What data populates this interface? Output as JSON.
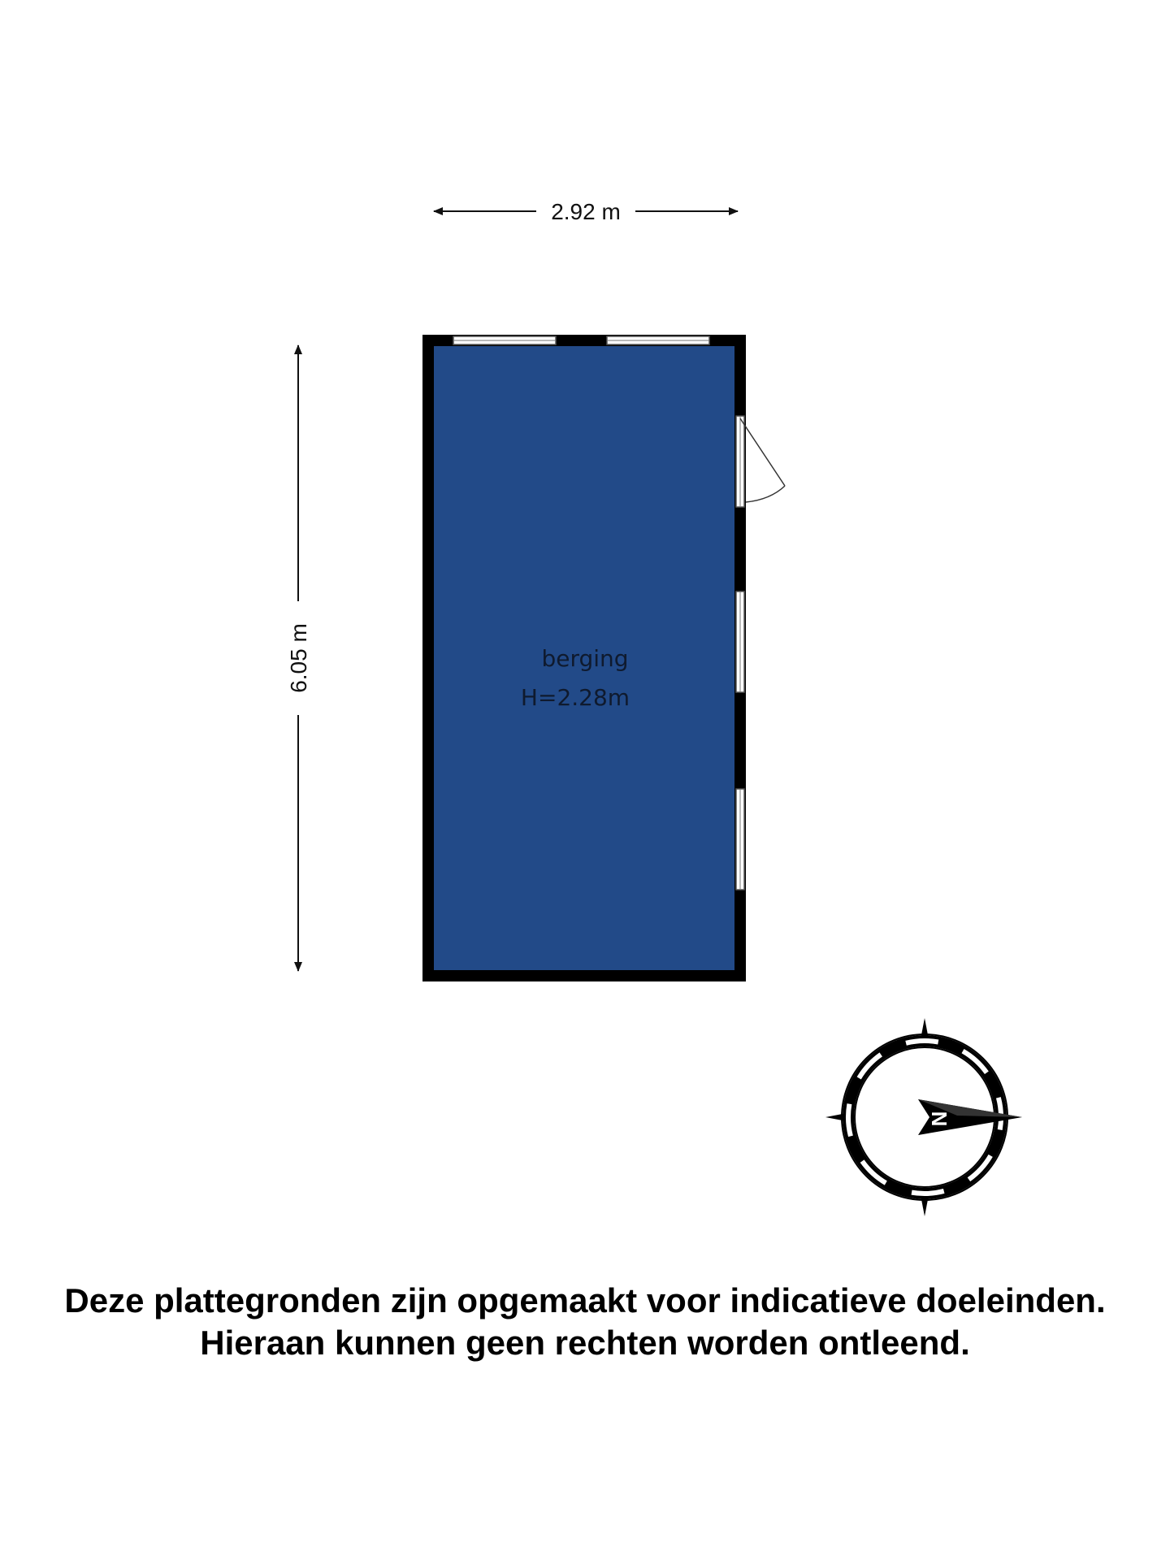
{
  "dimensions": {
    "width_label": "2.92 m",
    "height_label": "6.05 m"
  },
  "room": {
    "name": "berging",
    "height_label": "H=2.28m"
  },
  "compass": {
    "north_label": "N"
  },
  "disclaimer": {
    "line1": "Deze plattegronden zijn opgemaakt voor indicatieve doeleinden.",
    "line2": "Hieraan kunnen geen rechten worden ontleend."
  },
  "colors": {
    "room_fill": "#224a88",
    "wall": "#000000",
    "background": "#ffffff"
  }
}
